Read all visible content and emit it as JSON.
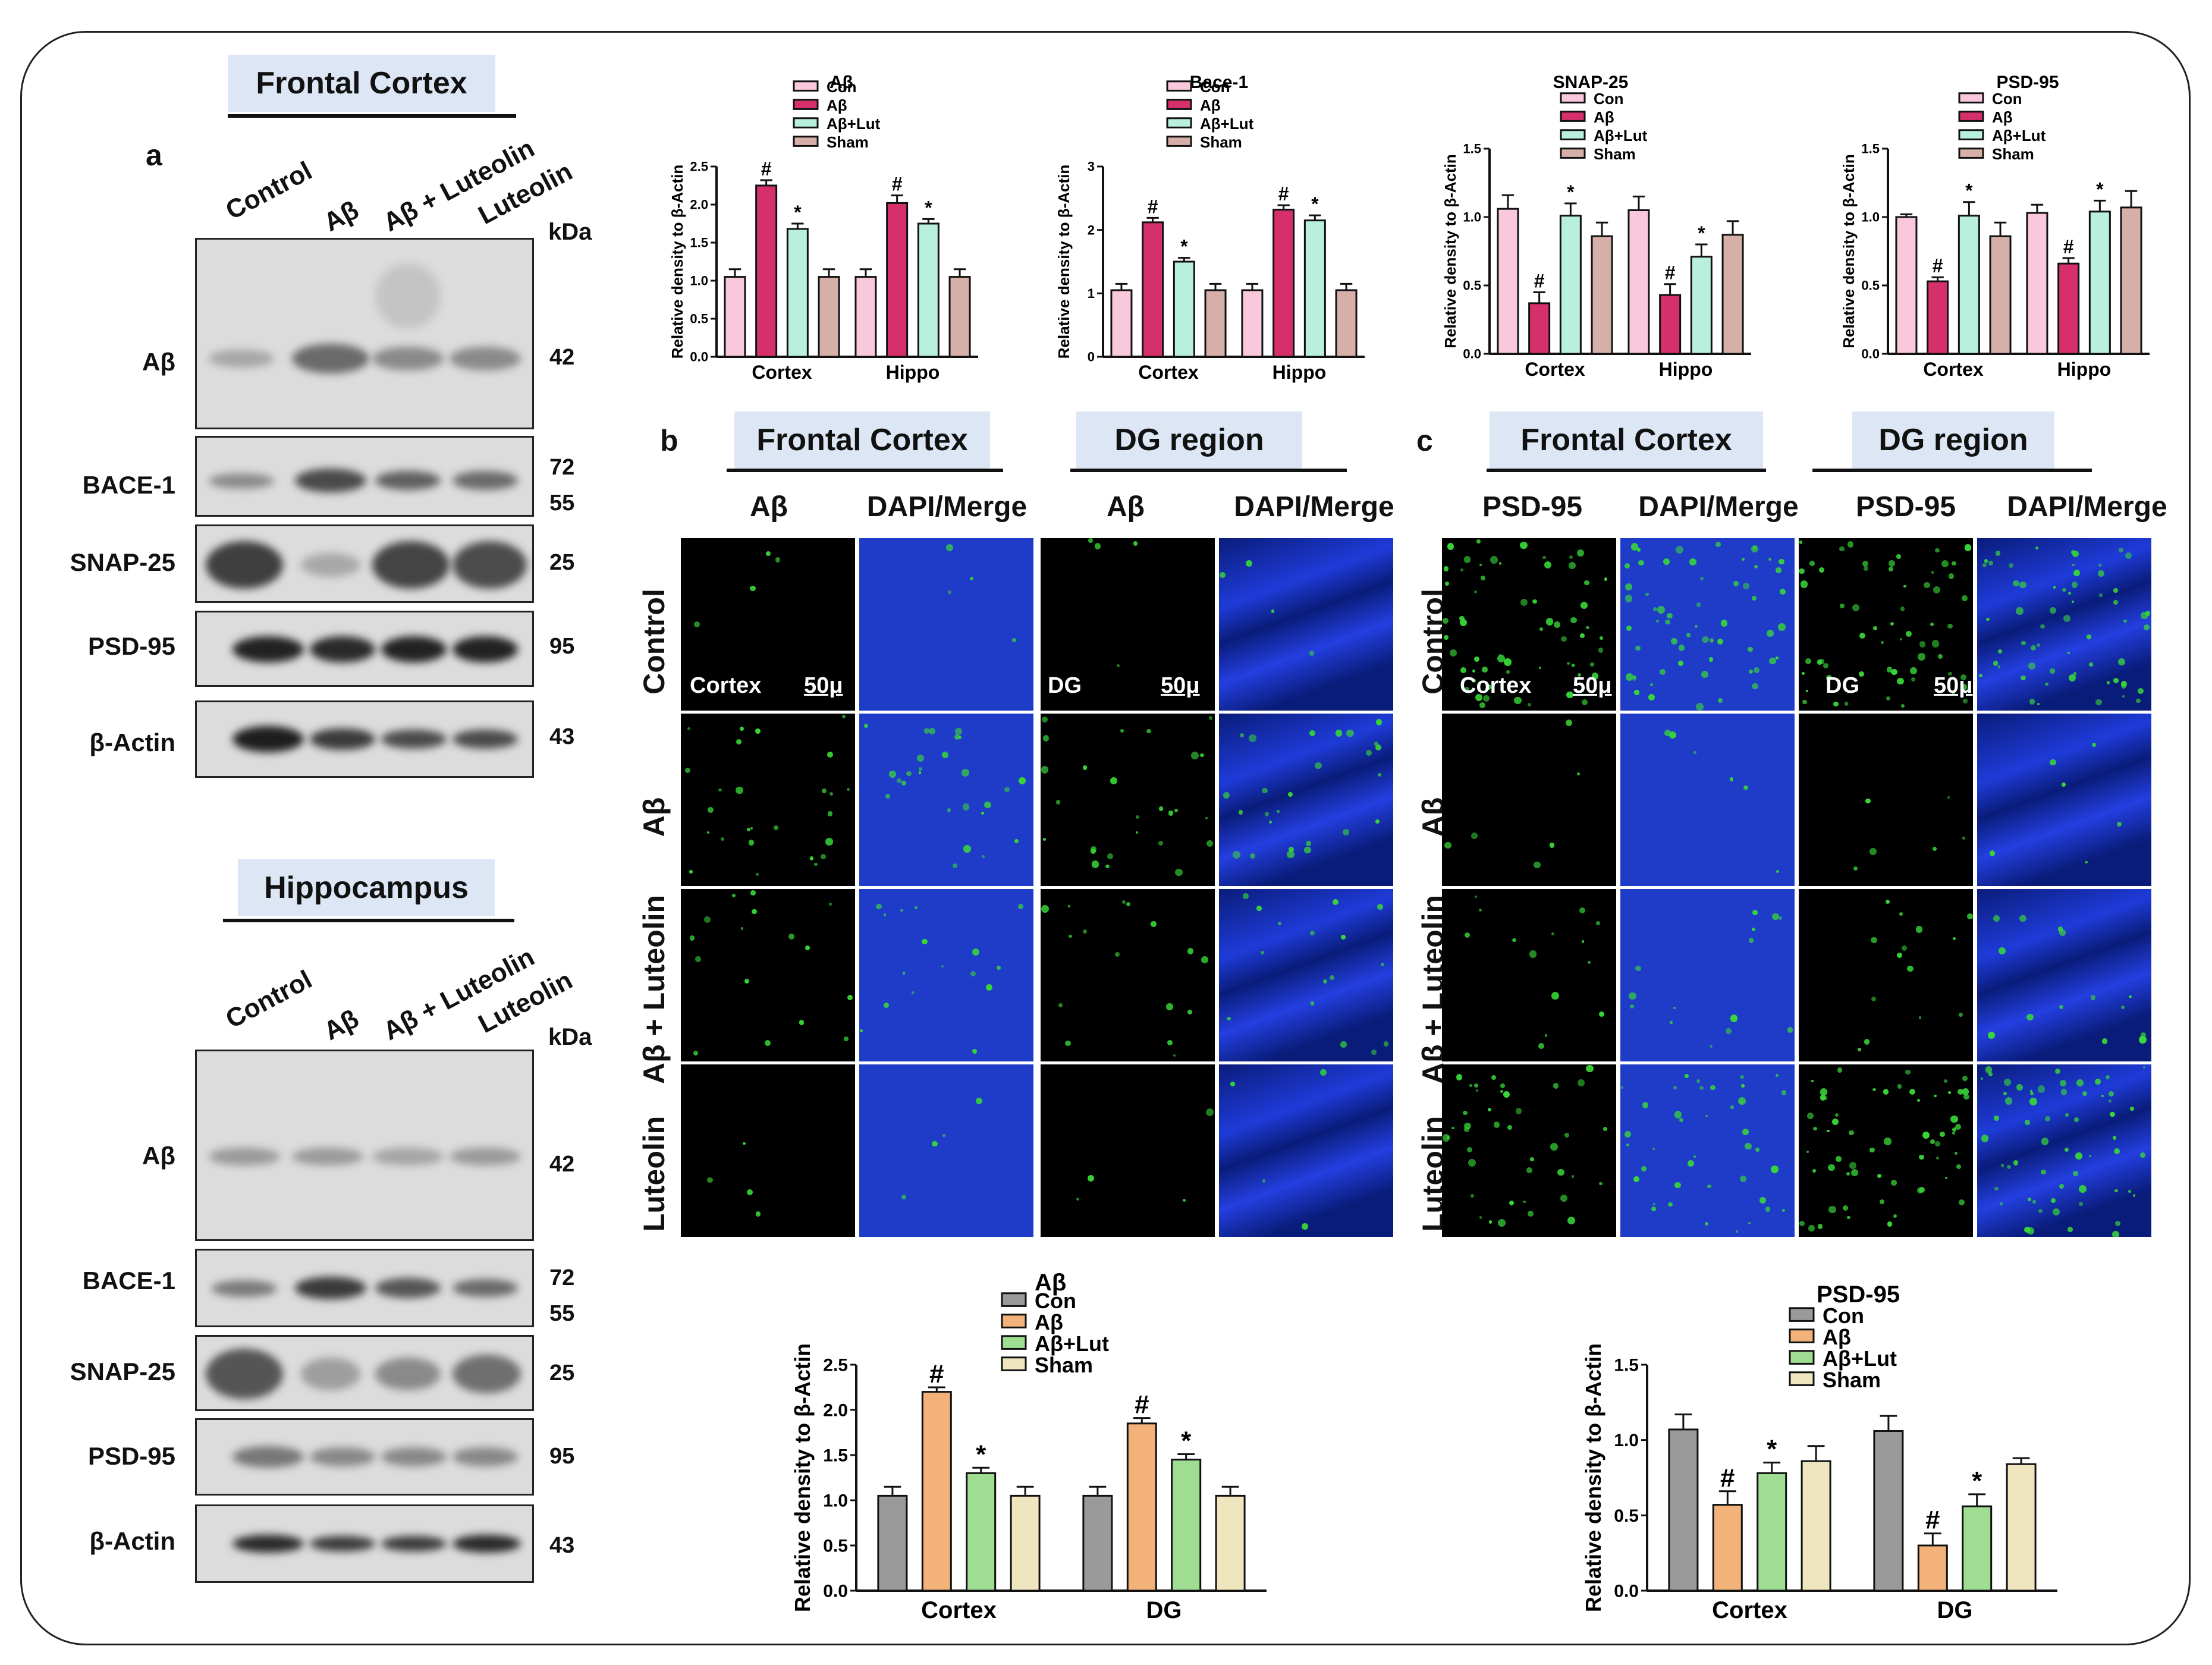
{
  "colors": {
    "frame": "#222222",
    "title_bg": "#dce6f5",
    "top_con": "#f9c8dc",
    "top_ab": "#d6306c",
    "top_lut": "#b9f0dc",
    "top_sham": "#d6b0a8",
    "bot_con": "#9a9a9a",
    "bot_ab": "#f2b27a",
    "bot_lut": "#9fdd92",
    "bot_sham": "#efe6c0",
    "dapi": "#1f3cc8",
    "gfp": "#38d838"
  },
  "panel_a": {
    "letter": "a",
    "frontal": {
      "title": "Frontal Cortex",
      "lanes": [
        "Control",
        "Aβ",
        "Aβ + Luteolin",
        "Luteolin"
      ],
      "kda": "kDa",
      "blots": [
        {
          "label": "Aβ",
          "mw": [
            "42"
          ]
        },
        {
          "label": "BACE-1",
          "mw": [
            "72",
            "55"
          ]
        },
        {
          "label": "SNAP-25",
          "mw": [
            "25"
          ]
        },
        {
          "label": "PSD-95",
          "mw": [
            "95"
          ]
        },
        {
          "label": "β-Actin",
          "mw": [
            "43"
          ]
        }
      ]
    },
    "hippo": {
      "title": "Hippocampus",
      "lanes": [
        "Control",
        "Aβ",
        "Aβ + Luteolin",
        "Luteolin"
      ],
      "kda": "kDa",
      "blots": [
        {
          "label": "Aβ",
          "mw": [
            "42"
          ]
        },
        {
          "label": "BACE-1",
          "mw": [
            "72",
            "55"
          ]
        },
        {
          "label": "SNAP-25",
          "mw": [
            "25"
          ]
        },
        {
          "label": "PSD-95",
          "mw": [
            "95"
          ]
        },
        {
          "label": "β-Actin",
          "mw": [
            "43"
          ]
        }
      ]
    }
  },
  "panel_b": {
    "letter": "b",
    "groups": [
      "Frontal Cortex",
      "DG region"
    ],
    "columns": [
      "Aβ",
      "DAPI/Merge",
      "Aβ",
      "DAPI/Merge"
    ],
    "rows": [
      "Control",
      "Aβ",
      "Aβ + Luteolin",
      "Luteolin"
    ],
    "cortex_tag": "Cortex",
    "dg_tag": "DG",
    "scale": "50μ"
  },
  "panel_c": {
    "letter": "c",
    "groups": [
      "Frontal Cortex",
      "DG region"
    ],
    "columns": [
      "PSD-95",
      "DAPI/Merge",
      "PSD-95",
      "DAPI/Merge"
    ],
    "rows": [
      "Control",
      "Aβ",
      "Aβ + Luteolin",
      "Luteolin"
    ],
    "cortex_tag": "Cortex",
    "dg_tag": "DG",
    "scale": "50μ"
  },
  "chart_data": [
    {
      "type": "bar",
      "title": "Aβ",
      "ylabel": "Relative density to β-Actin",
      "categories": [
        "Cortex",
        "Hippo"
      ],
      "ylim": [
        0,
        2.5
      ],
      "yticks": [
        "0.0",
        "0.5",
        "1.0",
        "1.5",
        "2.0",
        "2.5"
      ],
      "series": [
        {
          "name": "Con",
          "values": [
            1.05,
            1.05
          ],
          "errors": [
            0.1,
            0.1
          ],
          "marks": [
            "",
            ""
          ]
        },
        {
          "name": "Aβ",
          "values": [
            2.25,
            2.02
          ],
          "errors": [
            0.07,
            0.1
          ],
          "marks": [
            "#",
            "#"
          ]
        },
        {
          "name": "Aβ+Lut",
          "values": [
            1.68,
            1.75
          ],
          "errors": [
            0.07,
            0.06
          ],
          "marks": [
            "*",
            "*"
          ]
        },
        {
          "name": "Sham",
          "values": [
            1.05,
            1.05
          ],
          "errors": [
            0.1,
            0.1
          ],
          "marks": [
            "",
            ""
          ]
        }
      ]
    },
    {
      "type": "bar",
      "title": "Bace-1",
      "ylabel": "Relative density to β-Actin",
      "categories": [
        "Cortex",
        "Hippo"
      ],
      "ylim": [
        0,
        3
      ],
      "yticks": [
        "0",
        "1",
        "2",
        "3"
      ],
      "series": [
        {
          "name": "Con",
          "values": [
            1.05,
            1.05
          ],
          "errors": [
            0.1,
            0.1
          ],
          "marks": [
            "",
            ""
          ]
        },
        {
          "name": "Aβ",
          "values": [
            2.12,
            2.32
          ],
          "errors": [
            0.07,
            0.07
          ],
          "marks": [
            "#",
            "#"
          ]
        },
        {
          "name": "Aβ+Lut",
          "values": [
            1.5,
            2.15
          ],
          "errors": [
            0.06,
            0.08
          ],
          "marks": [
            "*",
            "*"
          ]
        },
        {
          "name": "Sham",
          "values": [
            1.05,
            1.05
          ],
          "errors": [
            0.1,
            0.1
          ],
          "marks": [
            "",
            ""
          ]
        }
      ]
    },
    {
      "type": "bar",
      "title": "SNAP-25",
      "ylabel": "Relative density to β-Actin",
      "categories": [
        "Cortex",
        "Hippo"
      ],
      "ylim": [
        0,
        1.5
      ],
      "yticks": [
        "0.0",
        "0.5",
        "1.0",
        "1.5"
      ],
      "series": [
        {
          "name": "Con",
          "values": [
            1.06,
            1.05
          ],
          "errors": [
            0.1,
            0.1
          ],
          "marks": [
            "",
            ""
          ]
        },
        {
          "name": "Aβ",
          "values": [
            0.37,
            0.43
          ],
          "errors": [
            0.08,
            0.08
          ],
          "marks": [
            "#",
            "#"
          ]
        },
        {
          "name": "Aβ+Lut",
          "values": [
            1.01,
            0.71
          ],
          "errors": [
            0.09,
            0.09
          ],
          "marks": [
            "*",
            "*"
          ]
        },
        {
          "name": "Sham",
          "values": [
            0.86,
            0.87
          ],
          "errors": [
            0.1,
            0.1
          ],
          "marks": [
            "",
            ""
          ]
        }
      ]
    },
    {
      "type": "bar",
      "title": "PSD-95",
      "ylabel": "Relative density to β-Actin",
      "categories": [
        "Cortex",
        "Hippo"
      ],
      "ylim": [
        0,
        1.5
      ],
      "yticks": [
        "0.0",
        "0.5",
        "1.0",
        "1.5"
      ],
      "series": [
        {
          "name": "Con",
          "values": [
            1.0,
            1.03
          ],
          "errors": [
            0.02,
            0.06
          ],
          "marks": [
            "",
            ""
          ]
        },
        {
          "name": "Aβ",
          "values": [
            0.53,
            0.66
          ],
          "errors": [
            0.03,
            0.04
          ],
          "marks": [
            "#",
            "#"
          ]
        },
        {
          "name": "Aβ+Lut",
          "values": [
            1.01,
            1.04
          ],
          "errors": [
            0.1,
            0.08
          ],
          "marks": [
            "*",
            "*"
          ]
        },
        {
          "name": "Sham",
          "values": [
            0.86,
            1.07
          ],
          "errors": [
            0.1,
            0.12
          ],
          "marks": [
            "",
            ""
          ]
        }
      ]
    },
    {
      "type": "bar",
      "title": "Aβ",
      "ylabel": "Relative density to β-Actin",
      "categories": [
        "Cortex",
        "DG"
      ],
      "ylim": [
        0,
        2.5
      ],
      "yticks": [
        "0.0",
        "0.5",
        "1.0",
        "1.5",
        "2.0",
        "2.5"
      ],
      "series": [
        {
          "name": "Con",
          "values": [
            1.05,
            1.05
          ],
          "errors": [
            0.1,
            0.1
          ],
          "marks": [
            "",
            ""
          ]
        },
        {
          "name": "Aβ",
          "values": [
            2.2,
            1.85
          ],
          "errors": [
            0.05,
            0.06
          ],
          "marks": [
            "#",
            "#"
          ]
        },
        {
          "name": "Aβ+Lut",
          "values": [
            1.3,
            1.45
          ],
          "errors": [
            0.06,
            0.06
          ],
          "marks": [
            "*",
            "*"
          ]
        },
        {
          "name": "Sham",
          "values": [
            1.05,
            1.05
          ],
          "errors": [
            0.1,
            0.1
          ],
          "marks": [
            "",
            ""
          ]
        }
      ]
    },
    {
      "type": "bar",
      "title": "PSD-95",
      "ylabel": "Relative density to β-Actin",
      "categories": [
        "Cortex",
        "DG"
      ],
      "ylim": [
        0,
        1.5
      ],
      "yticks": [
        "0.0",
        "0.5",
        "1.0",
        "1.5"
      ],
      "series": [
        {
          "name": "Con",
          "values": [
            1.07,
            1.06
          ],
          "errors": [
            0.1,
            0.1
          ],
          "marks": [
            "",
            ""
          ]
        },
        {
          "name": "Aβ",
          "values": [
            0.57,
            0.3
          ],
          "errors": [
            0.09,
            0.08
          ],
          "marks": [
            "#",
            "#"
          ]
        },
        {
          "name": "Aβ+Lut",
          "values": [
            0.78,
            0.56
          ],
          "errors": [
            0.07,
            0.08
          ],
          "marks": [
            "*",
            "*"
          ]
        },
        {
          "name": "Sham",
          "values": [
            0.86,
            0.84
          ],
          "errors": [
            0.1,
            0.04
          ],
          "marks": [
            "",
            ""
          ]
        }
      ]
    }
  ]
}
